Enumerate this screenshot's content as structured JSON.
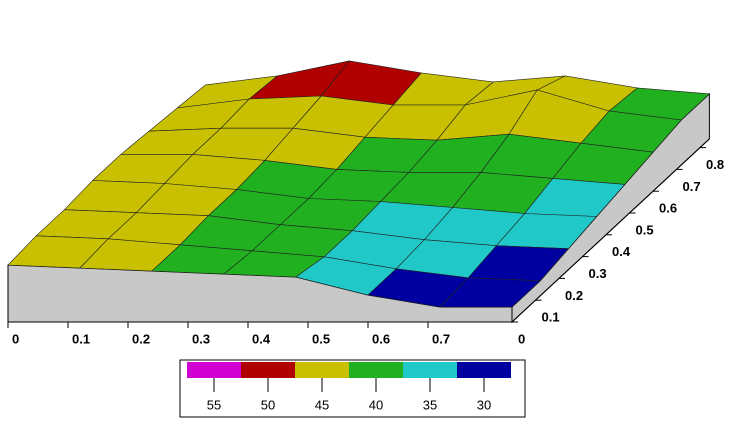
{
  "chart_data": {
    "type": "surface3d",
    "x": [
      0,
      0.12,
      0.24,
      0.36,
      0.48,
      0.6,
      0.72,
      0.84
    ],
    "y": [
      0,
      0.12,
      0.24,
      0.36,
      0.48,
      0.6,
      0.72,
      0.84
    ],
    "z": [
      [
        44,
        43,
        42,
        41,
        40,
        34,
        30,
        30
      ],
      [
        45,
        44,
        42,
        40,
        38,
        34,
        31,
        30
      ],
      [
        45,
        44,
        43,
        40,
        38,
        35,
        33,
        32
      ],
      [
        46,
        45,
        43,
        40,
        39,
        37,
        35,
        34
      ],
      [
        46,
        46,
        44,
        41,
        40,
        40,
        38,
        36
      ],
      [
        45,
        46,
        46,
        43,
        42,
        44,
        41,
        38
      ],
      [
        44,
        47,
        48,
        45,
        45,
        50,
        43,
        40
      ],
      [
        43,
        46,
        51,
        47,
        44,
        46,
        42,
        40
      ]
    ],
    "xlim": [
      0,
      0.84
    ],
    "ylim": [
      0,
      0.84
    ],
    "zlim": [
      25,
      60
    ],
    "xticks": [
      0,
      0.1,
      0.2,
      0.3,
      0.4,
      0.5,
      0.6,
      0.7
    ],
    "yticks": [
      0,
      0.1,
      0.2,
      0.3,
      0.4,
      0.5,
      0.6,
      0.7,
      0.8
    ],
    "colorbar": {
      "ticks": [
        55,
        50,
        45,
        40,
        35,
        30
      ],
      "colors": [
        "#d000d0",
        "#b00000",
        "#c8c000",
        "#20b020",
        "#20c8c8",
        "#0000a0"
      ]
    },
    "wall_color": "#c8c8c8"
  }
}
